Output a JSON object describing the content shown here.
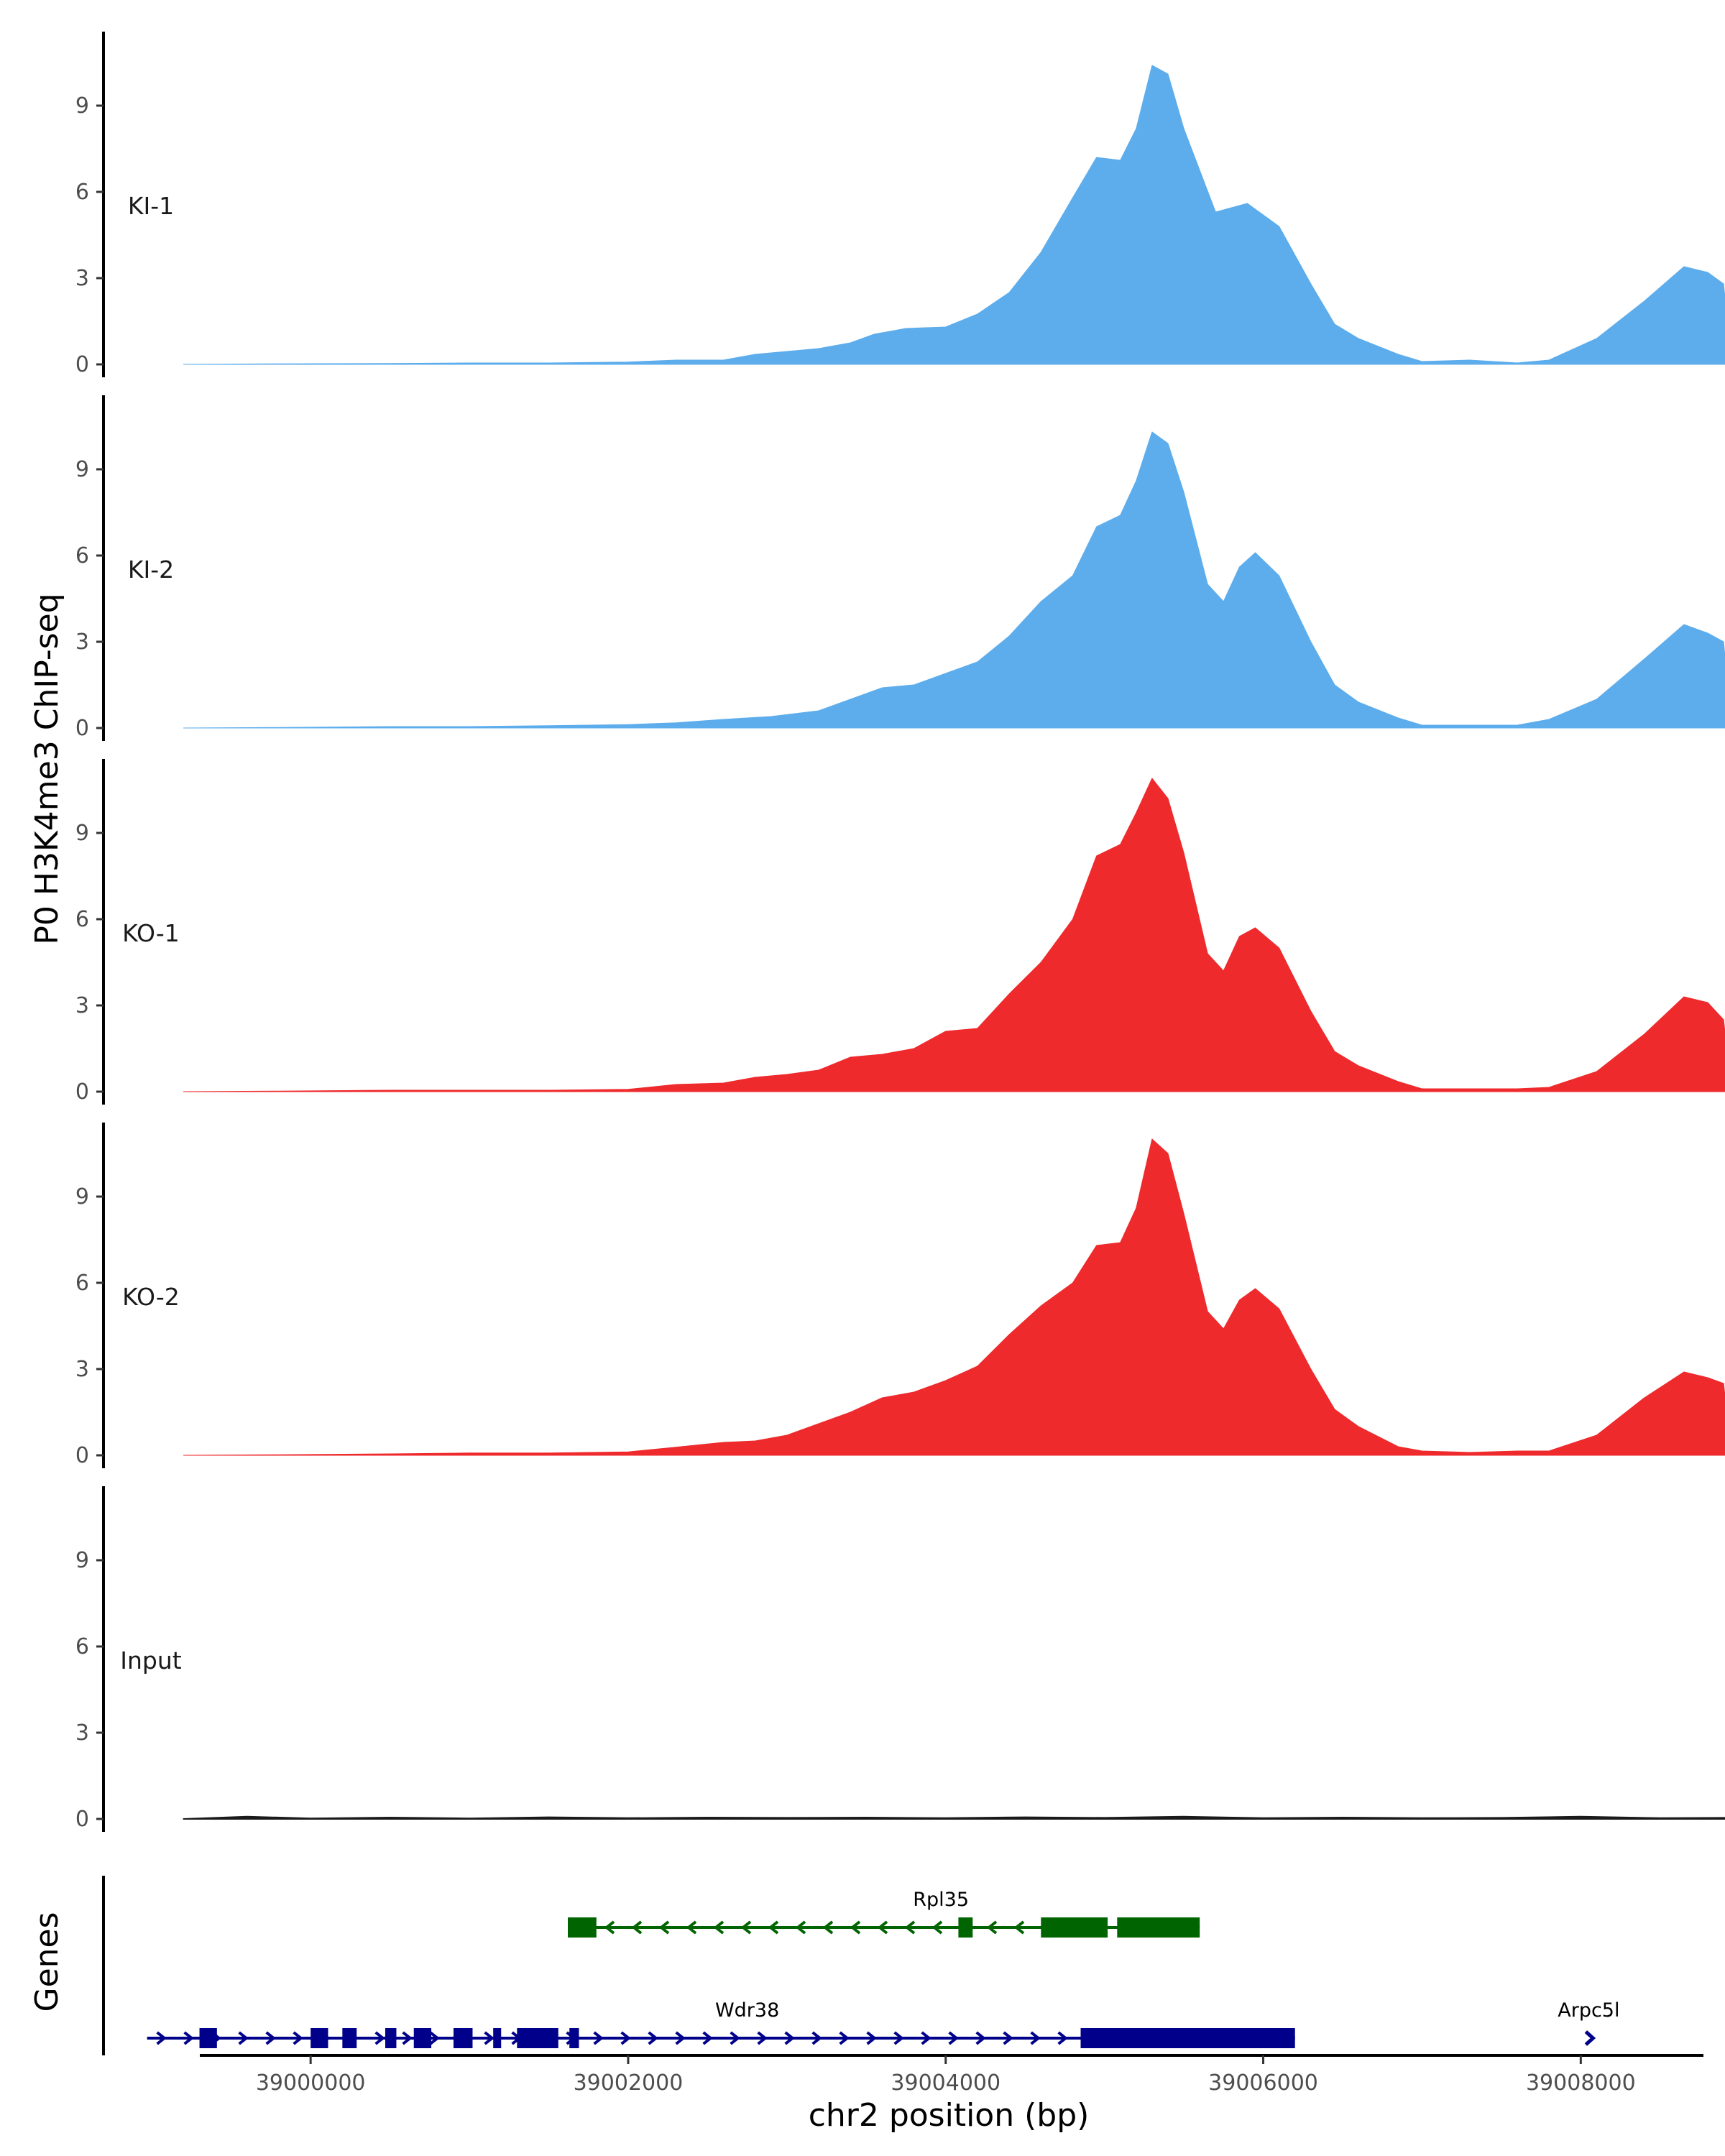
{
  "chart_data": {
    "type": "area",
    "ylabel": "P0 H3K4me3 ChIP-seq",
    "xlabel": "chr2 position (bp)",
    "genes_label": "Genes",
    "xlim": [
      38998700,
      39008750
    ],
    "ylim": [
      0,
      11.5
    ],
    "x_ticks": [
      39000000,
      39002000,
      39004000,
      39006000,
      39008000
    ],
    "x_tick_labels": [
      "39000000",
      "39002000",
      "39004000",
      "39006000",
      "39008000"
    ],
    "y_ticks": [
      0,
      3,
      6,
      9
    ],
    "y_tick_labels": [
      "0",
      "3",
      "6",
      "9"
    ],
    "tracks": [
      {
        "name": "KI-1",
        "color": "#5DADEC",
        "points": [
          [
            38999200,
            0
          ],
          [
            38999800,
            0.02
          ],
          [
            39000500,
            0.03
          ],
          [
            39001000,
            0.05
          ],
          [
            39001500,
            0.05
          ],
          [
            39002000,
            0.08
          ],
          [
            39002300,
            0.15
          ],
          [
            39002600,
            0.15
          ],
          [
            39002800,
            0.35
          ],
          [
            39003000,
            0.45
          ],
          [
            39003200,
            0.55
          ],
          [
            39003400,
            0.75
          ],
          [
            39003550,
            1.05
          ],
          [
            39003750,
            1.25
          ],
          [
            39004000,
            1.3
          ],
          [
            39004200,
            1.75
          ],
          [
            39004400,
            2.5
          ],
          [
            39004600,
            3.9
          ],
          [
            39004800,
            5.8
          ],
          [
            39004950,
            7.2
          ],
          [
            39005100,
            7.1
          ],
          [
            39005200,
            8.2
          ],
          [
            39005300,
            10.4
          ],
          [
            39005400,
            10.1
          ],
          [
            39005500,
            8.2
          ],
          [
            39005700,
            5.3
          ],
          [
            39005900,
            5.6
          ],
          [
            39006100,
            4.8
          ],
          [
            39006300,
            2.8
          ],
          [
            39006450,
            1.4
          ],
          [
            39006600,
            0.9
          ],
          [
            39006850,
            0.35
          ],
          [
            39007000,
            0.1
          ],
          [
            39007300,
            0.15
          ],
          [
            39007600,
            0.05
          ],
          [
            39007800,
            0.15
          ],
          [
            39008100,
            0.9
          ],
          [
            39008400,
            2.2
          ],
          [
            39008650,
            3.4
          ],
          [
            39008800,
            3.2
          ],
          [
            39008900,
            2.8
          ],
          [
            39008950,
            0
          ]
        ]
      },
      {
        "name": "KI-2",
        "color": "#5DADEC",
        "points": [
          [
            38999200,
            0
          ],
          [
            38999800,
            0.02
          ],
          [
            39000500,
            0.05
          ],
          [
            39001000,
            0.05
          ],
          [
            39001500,
            0.08
          ],
          [
            39002000,
            0.12
          ],
          [
            39002300,
            0.18
          ],
          [
            39002600,
            0.3
          ],
          [
            39002900,
            0.4
          ],
          [
            39003200,
            0.6
          ],
          [
            39003400,
            1.0
          ],
          [
            39003600,
            1.4
          ],
          [
            39003800,
            1.5
          ],
          [
            39004000,
            1.9
          ],
          [
            39004200,
            2.3
          ],
          [
            39004400,
            3.2
          ],
          [
            39004600,
            4.4
          ],
          [
            39004800,
            5.3
          ],
          [
            39004950,
            7.0
          ],
          [
            39005100,
            7.4
          ],
          [
            39005200,
            8.6
          ],
          [
            39005300,
            10.3
          ],
          [
            39005400,
            9.9
          ],
          [
            39005500,
            8.2
          ],
          [
            39005650,
            5.0
          ],
          [
            39005750,
            4.4
          ],
          [
            39005850,
            5.6
          ],
          [
            39005950,
            6.1
          ],
          [
            39006100,
            5.3
          ],
          [
            39006300,
            3.0
          ],
          [
            39006450,
            1.5
          ],
          [
            39006600,
            0.9
          ],
          [
            39006850,
            0.35
          ],
          [
            39007000,
            0.1
          ],
          [
            39007300,
            0.1
          ],
          [
            39007600,
            0.1
          ],
          [
            39007800,
            0.3
          ],
          [
            39008100,
            1.0
          ],
          [
            39008400,
            2.4
          ],
          [
            39008650,
            3.6
          ],
          [
            39008800,
            3.3
          ],
          [
            39008900,
            3.0
          ],
          [
            39008950,
            0
          ]
        ]
      },
      {
        "name": "KO-1",
        "color": "#EE2A2D",
        "points": [
          [
            38999200,
            0
          ],
          [
            38999800,
            0.02
          ],
          [
            39000500,
            0.05
          ],
          [
            39001000,
            0.05
          ],
          [
            39001500,
            0.05
          ],
          [
            39002000,
            0.08
          ],
          [
            39002300,
            0.25
          ],
          [
            39002600,
            0.3
          ],
          [
            39002800,
            0.5
          ],
          [
            39003000,
            0.6
          ],
          [
            39003200,
            0.75
          ],
          [
            39003400,
            1.2
          ],
          [
            39003600,
            1.3
          ],
          [
            39003800,
            1.5
          ],
          [
            39004000,
            2.1
          ],
          [
            39004200,
            2.2
          ],
          [
            39004400,
            3.4
          ],
          [
            39004600,
            4.5
          ],
          [
            39004800,
            6.0
          ],
          [
            39004950,
            8.2
          ],
          [
            39005100,
            8.6
          ],
          [
            39005200,
            9.7
          ],
          [
            39005300,
            10.9
          ],
          [
            39005400,
            10.2
          ],
          [
            39005500,
            8.3
          ],
          [
            39005650,
            4.8
          ],
          [
            39005750,
            4.2
          ],
          [
            39005850,
            5.4
          ],
          [
            39005950,
            5.7
          ],
          [
            39006100,
            5.0
          ],
          [
            39006300,
            2.8
          ],
          [
            39006450,
            1.4
          ],
          [
            39006600,
            0.9
          ],
          [
            39006850,
            0.35
          ],
          [
            39007000,
            0.1
          ],
          [
            39007300,
            0.1
          ],
          [
            39007600,
            0.1
          ],
          [
            39007800,
            0.15
          ],
          [
            39008100,
            0.7
          ],
          [
            39008400,
            2.0
          ],
          [
            39008650,
            3.3
          ],
          [
            39008800,
            3.1
          ],
          [
            39008900,
            2.5
          ],
          [
            39008950,
            0
          ]
        ]
      },
      {
        "name": "KO-2",
        "color": "#EE2A2D",
        "points": [
          [
            38999200,
            0
          ],
          [
            38999800,
            0.02
          ],
          [
            39000500,
            0.05
          ],
          [
            39001000,
            0.08
          ],
          [
            39001500,
            0.08
          ],
          [
            39002000,
            0.12
          ],
          [
            39002300,
            0.28
          ],
          [
            39002600,
            0.45
          ],
          [
            39002800,
            0.5
          ],
          [
            39003000,
            0.7
          ],
          [
            39003200,
            1.1
          ],
          [
            39003400,
            1.5
          ],
          [
            39003600,
            2.0
          ],
          [
            39003800,
            2.2
          ],
          [
            39004000,
            2.6
          ],
          [
            39004200,
            3.1
          ],
          [
            39004400,
            4.2
          ],
          [
            39004600,
            5.2
          ],
          [
            39004800,
            6.0
          ],
          [
            39004950,
            7.3
          ],
          [
            39005100,
            7.4
          ],
          [
            39005200,
            8.6
          ],
          [
            39005300,
            11.0
          ],
          [
            39005400,
            10.5
          ],
          [
            39005500,
            8.4
          ],
          [
            39005650,
            5.0
          ],
          [
            39005750,
            4.4
          ],
          [
            39005850,
            5.4
          ],
          [
            39005950,
            5.8
          ],
          [
            39006100,
            5.1
          ],
          [
            39006300,
            3.0
          ],
          [
            39006450,
            1.6
          ],
          [
            39006600,
            1.0
          ],
          [
            39006850,
            0.3
          ],
          [
            39007000,
            0.15
          ],
          [
            39007300,
            0.1
          ],
          [
            39007600,
            0.15
          ],
          [
            39007800,
            0.15
          ],
          [
            39008100,
            0.7
          ],
          [
            39008400,
            2.0
          ],
          [
            39008650,
            2.9
          ],
          [
            39008800,
            2.7
          ],
          [
            39008900,
            2.5
          ],
          [
            39008950,
            0
          ]
        ]
      },
      {
        "name": "Input",
        "color": "#1a1a1a",
        "points": [
          [
            38999200,
            0
          ],
          [
            38999600,
            0.08
          ],
          [
            39000000,
            0.02
          ],
          [
            39000500,
            0.05
          ],
          [
            39001000,
            0.02
          ],
          [
            39001500,
            0.06
          ],
          [
            39002000,
            0.03
          ],
          [
            39002500,
            0.05
          ],
          [
            39003000,
            0.04
          ],
          [
            39003500,
            0.05
          ],
          [
            39004000,
            0.03
          ],
          [
            39004500,
            0.06
          ],
          [
            39005000,
            0.04
          ],
          [
            39005500,
            0.08
          ],
          [
            39006000,
            0.03
          ],
          [
            39006500,
            0.05
          ],
          [
            39007000,
            0.03
          ],
          [
            39007500,
            0.04
          ],
          [
            39008000,
            0.08
          ],
          [
            39008500,
            0.03
          ],
          [
            39008950,
            0.04
          ],
          [
            39008950,
            0
          ]
        ]
      }
    ],
    "genes": [
      {
        "name": "Rpl35",
        "color": "#006400",
        "strand": "-",
        "start": 39001620,
        "end": 39005600,
        "exons": [
          [
            39001620,
            39001800
          ],
          [
            39004080,
            39004170
          ],
          [
            39004600,
            39005020
          ],
          [
            39005080,
            39005600
          ]
        ]
      },
      {
        "name": "Wdr38",
        "color": "#00008B",
        "strand": "+",
        "start": 38998970,
        "end": 39006200,
        "exons": [
          [
            38999300,
            38999410
          ],
          [
            39000000,
            39000110
          ],
          [
            39000200,
            39000290
          ],
          [
            39000470,
            39000540
          ],
          [
            39000650,
            39000760
          ],
          [
            39000900,
            39001020
          ],
          [
            39001150,
            39001200
          ],
          [
            39001300,
            39001560
          ],
          [
            39001630,
            39001690
          ],
          [
            39004850,
            39006200
          ]
        ]
      },
      {
        "name": "Arpc5l",
        "color": "#00008B",
        "strand": "+",
        "start": 39008050,
        "end": 39008080,
        "exons": []
      }
    ]
  }
}
